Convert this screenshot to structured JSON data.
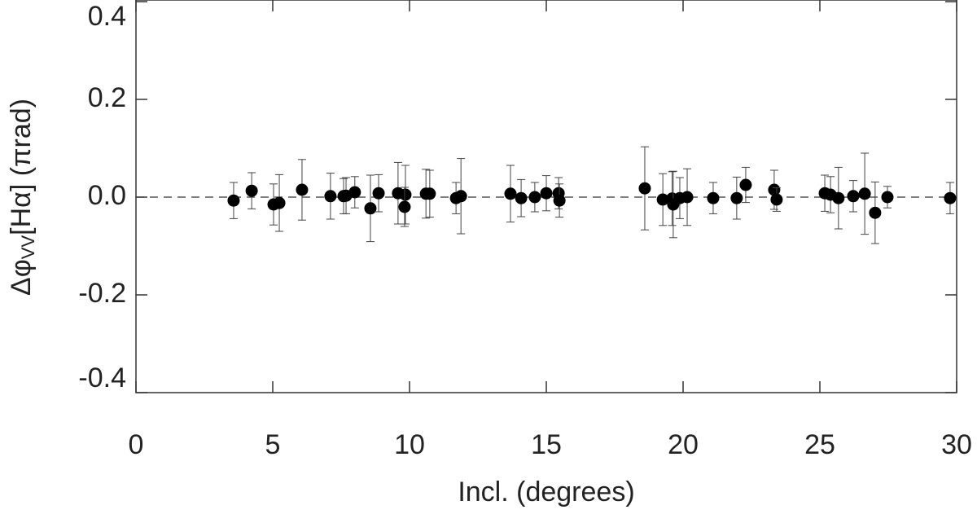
{
  "chart_data": {
    "type": "scatter",
    "xlabel": "Incl. (degrees)",
    "ylabel": {
      "symbol": "Δφ",
      "subscript": "VV",
      "rest": "[Hα] (πrad)"
    },
    "xlim": [
      0,
      30
    ],
    "xticks": [
      0,
      5,
      10,
      15,
      20,
      25,
      30
    ],
    "ylim": [
      -0.4,
      0.4
    ],
    "yticks": [
      {
        "value": -0.4,
        "label": "-0.4"
      },
      {
        "value": -0.2,
        "label": "-0.2"
      },
      {
        "value": 0,
        "label": "0.0"
      },
      {
        "value": 0.2,
        "label": "0.2"
      },
      {
        "value": 0.4,
        "label": "0.4"
      }
    ],
    "reference_line": 0,
    "series": [
      {
        "color": "#000000",
        "x": [
          3.57,
          4.23,
          5.03,
          5.24,
          6.07,
          7.11,
          7.59,
          7.68,
          8.0,
          8.57,
          8.87,
          9.58,
          9.85,
          9.82,
          10.6,
          10.74,
          11.7,
          11.88,
          13.69,
          14.08,
          14.58,
          15.0,
          15.45,
          15.48,
          18.6,
          19.26,
          19.6,
          19.64,
          19.88,
          20.15,
          21.1,
          21.96,
          22.29,
          23.33,
          23.42,
          25.18,
          25.39,
          25.68,
          26.22,
          26.64,
          27.02,
          27.47,
          29.76
        ],
        "values": [
          -0.007,
          0.013,
          -0.015,
          -0.012,
          0.015,
          0.002,
          0.002,
          0.003,
          0.01,
          -0.023,
          0.008,
          0.008,
          0.005,
          -0.02,
          0.007,
          0.007,
          -0.002,
          0.002,
          0.007,
          -0.002,
          0.0,
          0.008,
          0.008,
          -0.007,
          0.018,
          -0.005,
          -0.003,
          -0.015,
          -0.002,
          0.0,
          -0.002,
          -0.002,
          0.025,
          0.015,
          -0.005,
          0.008,
          0.005,
          -0.002,
          0.002,
          0.007,
          -0.032,
          0.0,
          -0.002
        ],
        "errors": [
          0.037,
          0.037,
          0.042,
          0.058,
          0.062,
          0.047,
          0.036,
          0.037,
          0.032,
          0.068,
          0.038,
          0.063,
          0.06,
          0.04,
          0.05,
          0.048,
          0.032,
          0.077,
          0.058,
          0.038,
          0.03,
          0.036,
          0.032,
          0.034,
          0.085,
          0.053,
          0.055,
          0.068,
          0.042,
          0.058,
          0.032,
          0.043,
          0.036,
          0.04,
          0.024,
          0.037,
          0.037,
          0.063,
          0.032,
          0.083,
          0.063,
          0.022,
          0.032
        ]
      }
    ]
  }
}
